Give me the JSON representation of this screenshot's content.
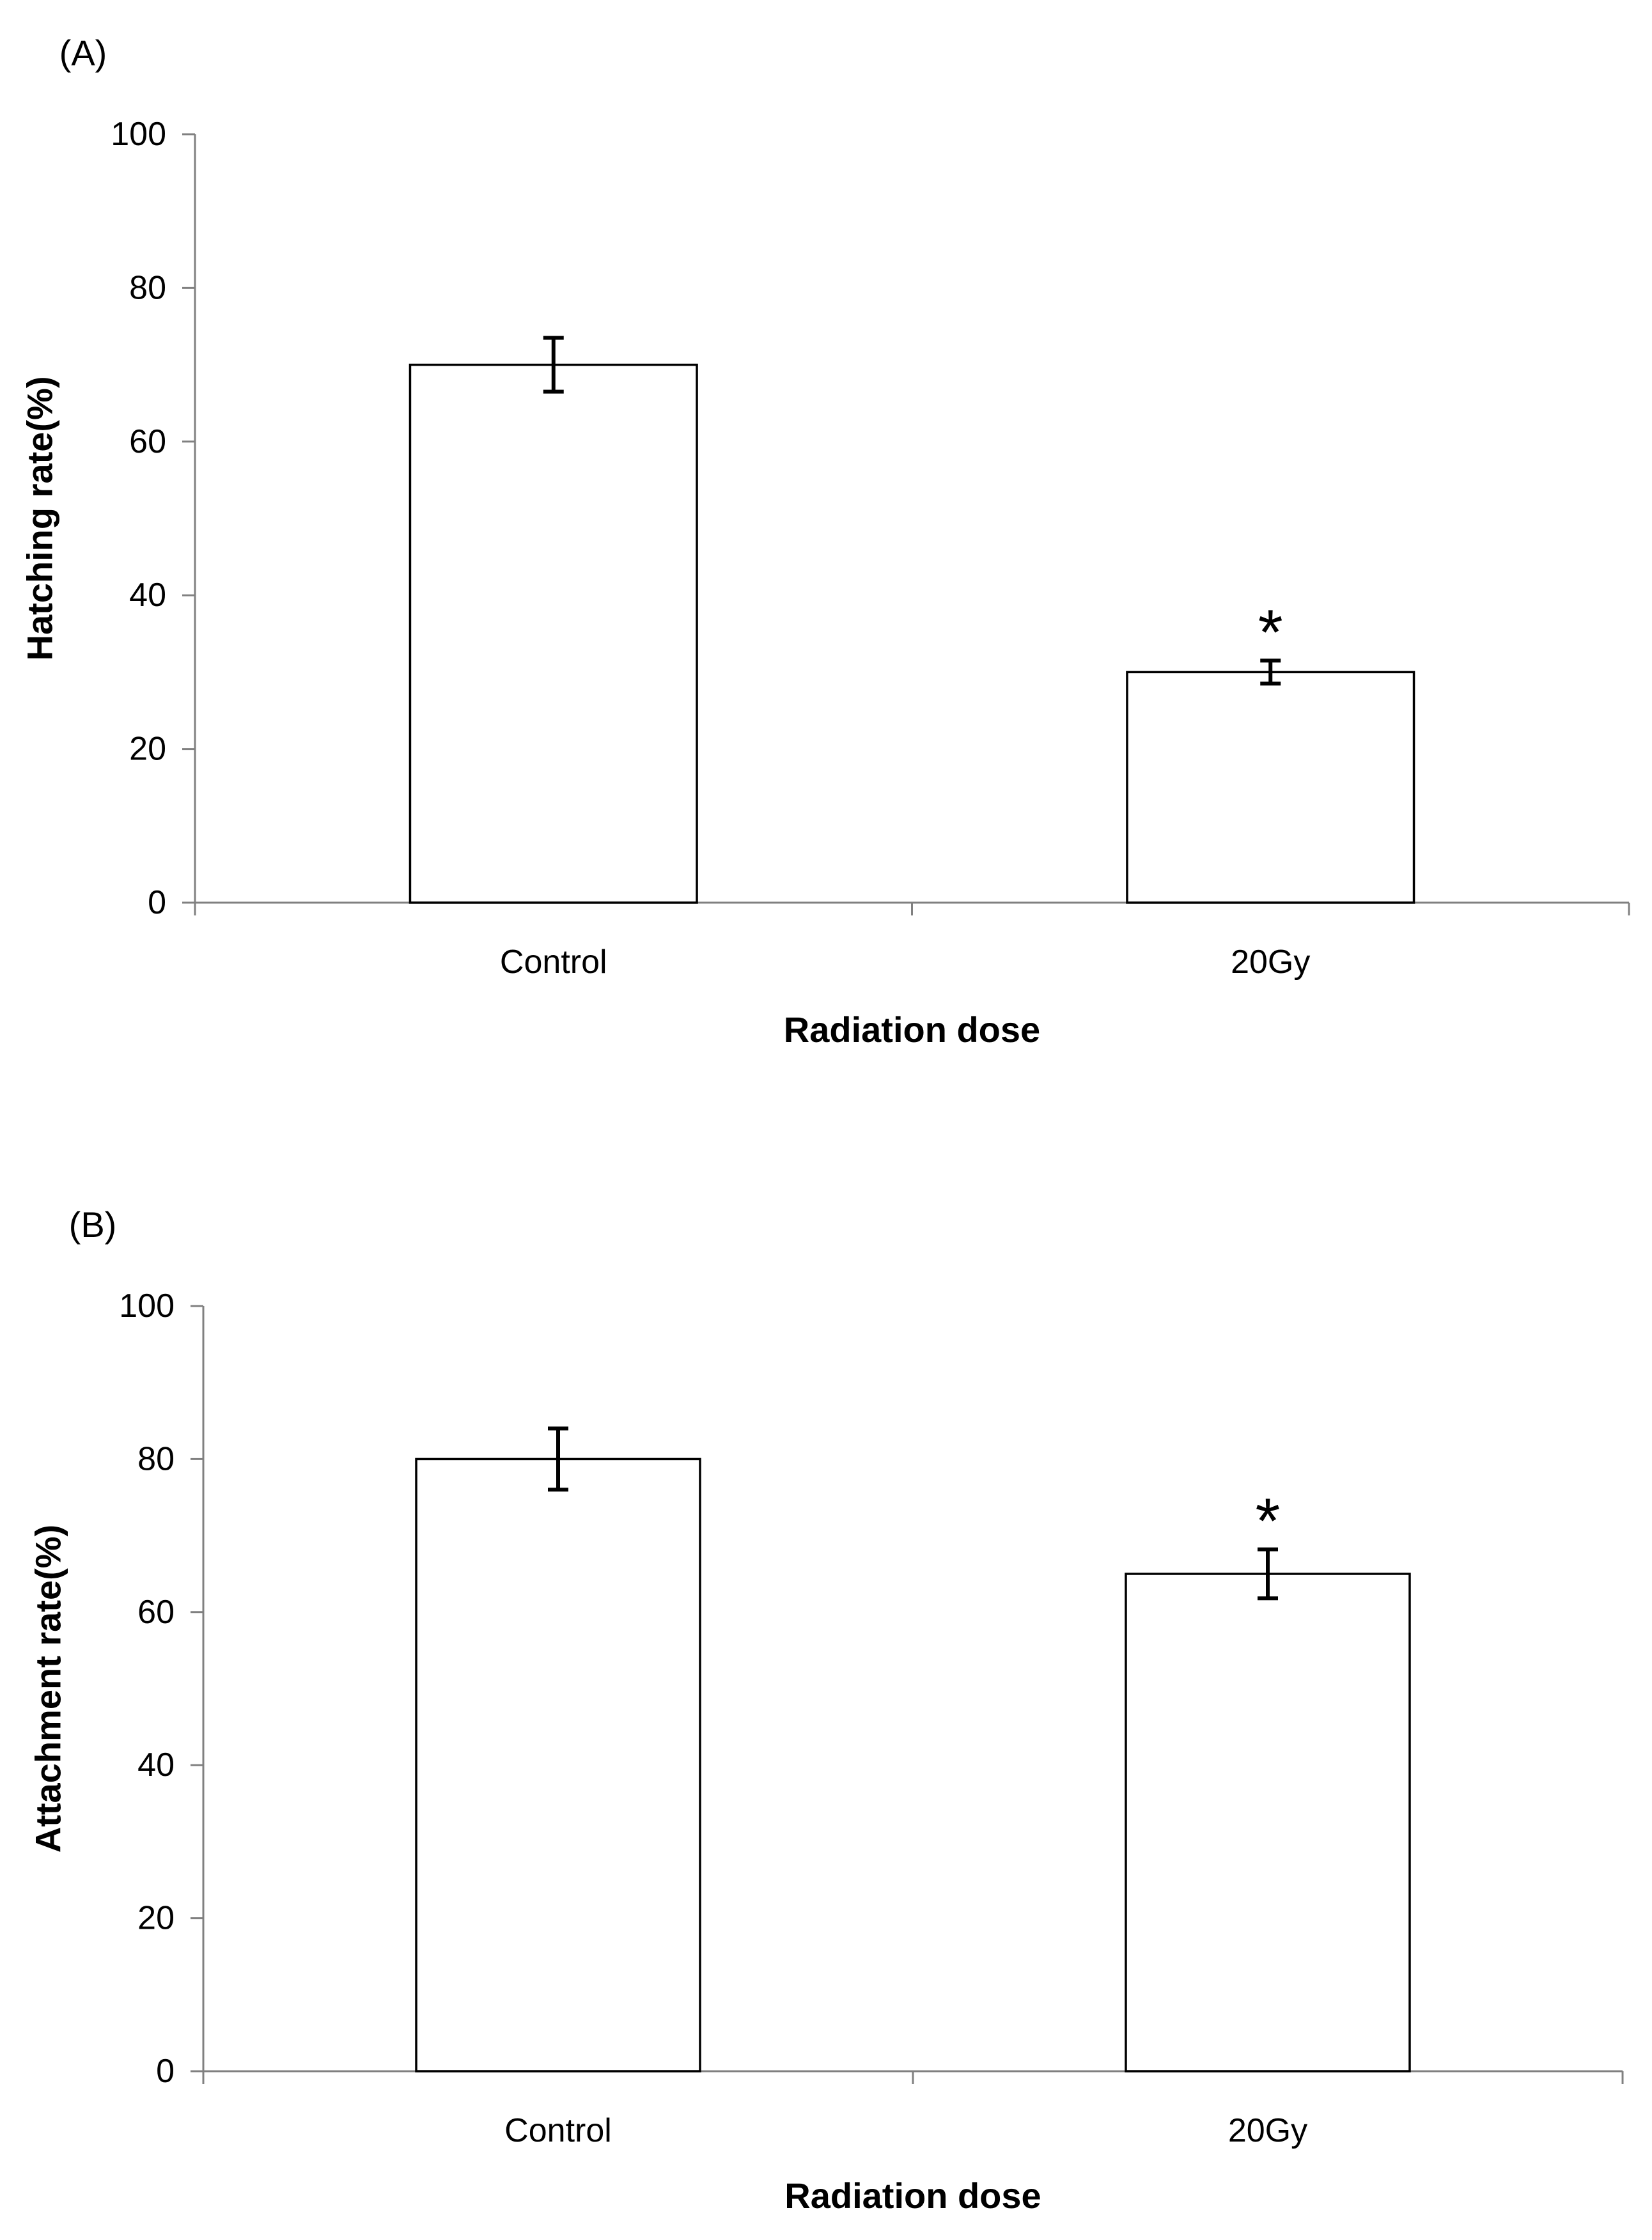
{
  "chart_data": [
    {
      "type": "bar",
      "panel_label": "(A)",
      "categories": [
        "Control",
        "20Gy"
      ],
      "values": [
        70,
        30
      ],
      "errors": [
        3.5,
        1.5
      ],
      "significance": [
        "",
        "*"
      ],
      "xlabel": "Radiation dose",
      "ylabel": "Hatching rate(%)",
      "ylim": [
        0,
        100
      ],
      "yticks": [
        0,
        20,
        40,
        60,
        80,
        100
      ]
    },
    {
      "type": "bar",
      "panel_label": "(B)",
      "categories": [
        "Control",
        "20Gy"
      ],
      "values": [
        80,
        65
      ],
      "errors": [
        4,
        3.2
      ],
      "significance": [
        "",
        "*"
      ],
      "xlabel": "Radiation dose",
      "ylabel": "Attachment rate(%)",
      "ylim": [
        0,
        100
      ],
      "yticks": [
        0,
        20,
        40,
        60,
        80,
        100
      ]
    }
  ]
}
